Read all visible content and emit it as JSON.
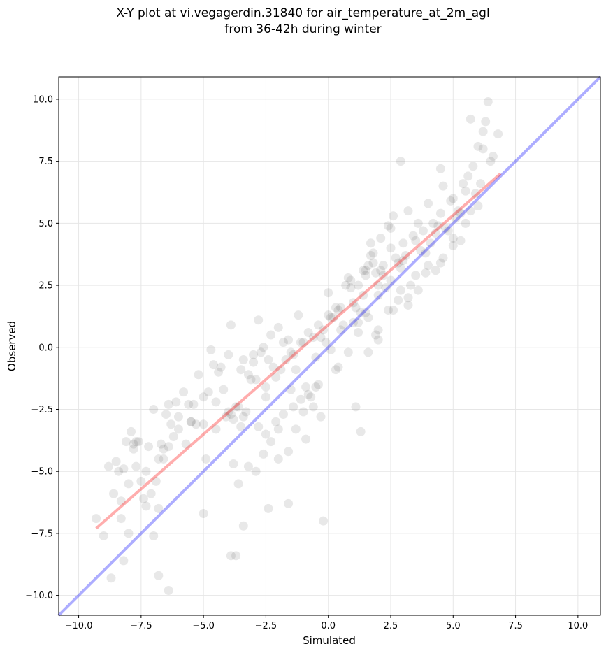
{
  "chart_data": {
    "type": "scatter",
    "title_line1": "X-Y plot at vi.vegagerdin.31840 for air_temperature_at_2m_agl",
    "title_line2": "from 36-42h during winter",
    "xlabel": "Simulated",
    "ylabel": "Observed",
    "xlim": [
      -10.8,
      10.9
    ],
    "ylim": [
      -10.8,
      10.9
    ],
    "x_ticks": [
      -10.0,
      -7.5,
      -5.0,
      -2.5,
      0.0,
      2.5,
      5.0,
      7.5,
      10.0
    ],
    "y_ticks": [
      -10.0,
      -7.5,
      -5.0,
      -2.5,
      0.0,
      2.5,
      5.0,
      7.5,
      10.0
    ],
    "x_tick_labels": [
      "−10.0",
      "−7.5",
      "−5.0",
      "−2.5",
      "0.0",
      "2.5",
      "5.0",
      "7.5",
      "10.0"
    ],
    "y_tick_labels": [
      "−10.0",
      "−7.5",
      "−5.0",
      "−2.5",
      "0.0",
      "2.5",
      "5.0",
      "7.5",
      "10.0"
    ],
    "grid": true,
    "point_color": "#000000",
    "point_opacity": 0.09,
    "reference_line": {
      "x": [
        -10.8,
        10.9
      ],
      "y": [
        -10.8,
        10.9
      ],
      "color": "#0000ff"
    },
    "fit_line": {
      "x": [
        -9.3,
        6.9
      ],
      "y": [
        -7.3,
        7.0
      ],
      "color": "#ff0000"
    },
    "points": {
      "x": [
        -9.3,
        -9.0,
        -8.8,
        -8.7,
        -8.5,
        -8.4,
        -8.3,
        -8.2,
        -8.1,
        -8.0,
        -7.9,
        -7.8,
        -7.7,
        -7.6,
        -7.5,
        -7.4,
        -7.3,
        -7.2,
        -7.0,
        -6.8,
        -6.7,
        -6.5,
        -6.4,
        -6.3,
        -6.1,
        -6.0,
        -5.8,
        -5.6,
        -5.5,
        -5.4,
        -5.2,
        -5.0,
        -4.8,
        -4.6,
        -4.4,
        -4.2,
        -4.0,
        -3.9,
        -3.8,
        -3.6,
        -3.5,
        -3.4,
        -3.2,
        -3.0,
        -2.8,
        -2.6,
        -2.4,
        -2.2,
        -2.0,
        -1.8,
        -1.6,
        -1.4,
        -1.2,
        -1.0,
        -0.8,
        -0.6,
        -0.4,
        -0.2,
        0.0,
        0.2,
        0.4,
        0.6,
        0.8,
        1.0,
        1.2,
        1.4,
        1.6,
        1.8,
        2.0,
        2.2,
        2.4,
        2.6,
        2.8,
        3.0,
        3.2,
        3.4,
        3.6,
        3.8,
        4.0,
        4.2,
        4.4,
        4.6,
        4.8,
        5.0,
        5.2,
        5.4,
        5.6,
        5.8,
        6.0,
        6.2,
        6.4,
        6.6,
        6.8,
        -8.6,
        -8.0,
        -7.3,
        -6.8,
        -6.6,
        -6.2,
        -5.7,
        -5.3,
        -4.9,
        -4.5,
        -4.1,
        -3.7,
        -3.3,
        -2.9,
        -2.5,
        -2.1,
        -1.7,
        -1.3,
        -0.9,
        -0.5,
        -0.1,
        0.3,
        0.7,
        1.1,
        1.5,
        1.9,
        2.3,
        2.7,
        3.1,
        3.5,
        3.9,
        4.3,
        4.7,
        5.1,
        5.5,
        5.9,
        6.3,
        -7.7,
        -7.1,
        -6.6,
        -6.0,
        -5.5,
        -5.0,
        -4.5,
        -4.0,
        -3.5,
        -3.0,
        -2.5,
        -2.0,
        -1.5,
        -1.0,
        -0.5,
        0.0,
        0.5,
        1.0,
        1.5,
        2.0,
        2.5,
        3.0,
        3.5,
        4.0,
        4.5,
        5.0,
        5.5,
        6.0,
        -8.3,
        -7.8,
        -6.9,
        -6.4,
        -4.7,
        -4.3,
        -3.9,
        -3.4,
        -3.1,
        -2.7,
        -2.3,
        -1.9,
        -1.5,
        -1.1,
        -0.7,
        -0.3,
        0.1,
        0.5,
        0.9,
        1.3,
        1.7,
        2.1,
        2.5,
        2.9,
        3.3,
        3.7,
        4.1,
        4.5,
        4.9,
        5.3,
        5.7,
        6.1,
        -3.8,
        -3.6,
        -3.2,
        -2.9,
        -2.6,
        -2.3,
        -2.0,
        -1.6,
        -1.3,
        -0.9,
        -0.6,
        -0.3,
        0.1,
        0.4,
        0.8,
        1.2,
        1.5,
        1.9,
        2.2,
        2.6,
        2.9,
        3.2,
        3.6,
        3.9,
        4.3,
        4.6,
        5.0,
        5.3,
        1.2,
        1.6,
        2.0,
        2.4,
        2.8,
        3.2,
        1.7,
        2.1,
        2.5,
        0.9,
        1.4,
        1.8,
        -2.8,
        -2.5,
        -2.1,
        -1.8,
        -1.4,
        -1.1,
        -0.8,
        -0.4,
        1.6,
        2.0,
        -8.2,
        -6.8,
        -5.0,
        -3.4,
        -2.4,
        -1.6,
        -0.2,
        5.7,
        6.2,
        6.5,
        4.5,
        2.9,
        -3.9,
        -3.7,
        -6.4,
        -7.0,
        0.3,
        1.1,
        1.3
      ],
      "y": [
        -6.9,
        -7.6,
        -4.8,
        -9.3,
        -4.6,
        -5.0,
        -6.9,
        -4.9,
        -3.8,
        -5.5,
        -3.4,
        -3.9,
        -4.8,
        -3.8,
        -5.4,
        -6.1,
        -5.0,
        -4.0,
        -2.5,
        -4.5,
        -3.9,
        -2.7,
        -2.3,
        -3.1,
        -2.2,
        -3.3,
        -1.8,
        -2.3,
        -3.0,
        -2.3,
        -1.1,
        -2.0,
        -1.8,
        -0.7,
        -1.0,
        -1.7,
        -0.3,
        0.9,
        -2.9,
        -2.4,
        -0.9,
        -2.8,
        -1.1,
        -0.6,
        1.1,
        0.0,
        -0.5,
        -0.8,
        0.8,
        0.2,
        0.3,
        -0.3,
        1.3,
        0.2,
        0.6,
        0.4,
        0.9,
        0.7,
        2.2,
        1.2,
        1.5,
        0.9,
        2.8,
        1.8,
        2.5,
        2.1,
        3.3,
        3.8,
        2.5,
        2.9,
        4.9,
        5.3,
        3.4,
        4.2,
        5.5,
        4.5,
        5.0,
        4.7,
        5.8,
        5.0,
        4.9,
        6.5,
        4.7,
        6.0,
        5.5,
        6.6,
        6.9,
        7.3,
        8.1,
        8.0,
        9.9,
        7.7,
        8.6,
        -5.9,
        -7.5,
        -6.4,
        -6.5,
        -4.1,
        -3.6,
        -3.9,
        -3.1,
        -4.5,
        -3.3,
        -2.8,
        -2.4,
        -2.6,
        -1.3,
        -1.6,
        -1.2,
        -0.5,
        -0.9,
        -1.6,
        -0.4,
        0.2,
        1.6,
        2.5,
        1.6,
        2.9,
        3.0,
        2.4,
        3.6,
        3.7,
        4.3,
        3.8,
        4.6,
        4.8,
        5.2,
        6.3,
        6.2,
        9.1,
        -3.8,
        -5.9,
        -4.5,
        -2.8,
        -3.0,
        -3.1,
        -2.2,
        -2.6,
        -3.2,
        -0.3,
        -2.0,
        -3.3,
        -1.7,
        -2.6,
        -1.6,
        1.3,
        1.6,
        1.0,
        3.1,
        2.1,
        2.7,
        3.5,
        2.9,
        3.3,
        5.4,
        4.4,
        5.0,
        5.7,
        -6.2,
        -4.1,
        -5.4,
        -4.0,
        -0.1,
        -0.8,
        -2.7,
        -0.5,
        -1.3,
        -0.2,
        0.5,
        -0.9,
        -0.2,
        0.2,
        -2.0,
        0.4,
        1.2,
        0.7,
        2.4,
        1.4,
        3.7,
        3.1,
        4.0,
        3.2,
        2.5,
        3.9,
        4.2,
        3.4,
        5.9,
        5.4,
        5.5,
        6.6,
        -4.7,
        -5.5,
        -4.8,
        -5.0,
        -4.3,
        -3.8,
        -4.5,
        -4.2,
        -3.3,
        -3.7,
        -2.4,
        -2.8,
        -0.1,
        -0.8,
        -0.2,
        0.6,
        1.4,
        0.5,
        3.3,
        1.5,
        2.3,
        1.7,
        2.3,
        3.0,
        3.1,
        3.6,
        4.1,
        4.3,
        1.0,
        1.2,
        0.7,
        1.5,
        1.9,
        2.0,
        4.2,
        4.4,
        4.8,
        2.7,
        3.1,
        3.4,
        -3.2,
        -3.5,
        -3.0,
        -2.7,
        -2.4,
        -2.1,
        -1.9,
        -1.5,
        -0.2,
        0.3,
        -8.6,
        -9.2,
        -6.7,
        -7.2,
        -6.5,
        -6.3,
        -7.0,
        9.2,
        8.7,
        7.5,
        7.2,
        7.5,
        -8.4,
        -8.4,
        -9.8,
        -7.6,
        -0.9,
        -2.4,
        -3.4
      ]
    }
  }
}
